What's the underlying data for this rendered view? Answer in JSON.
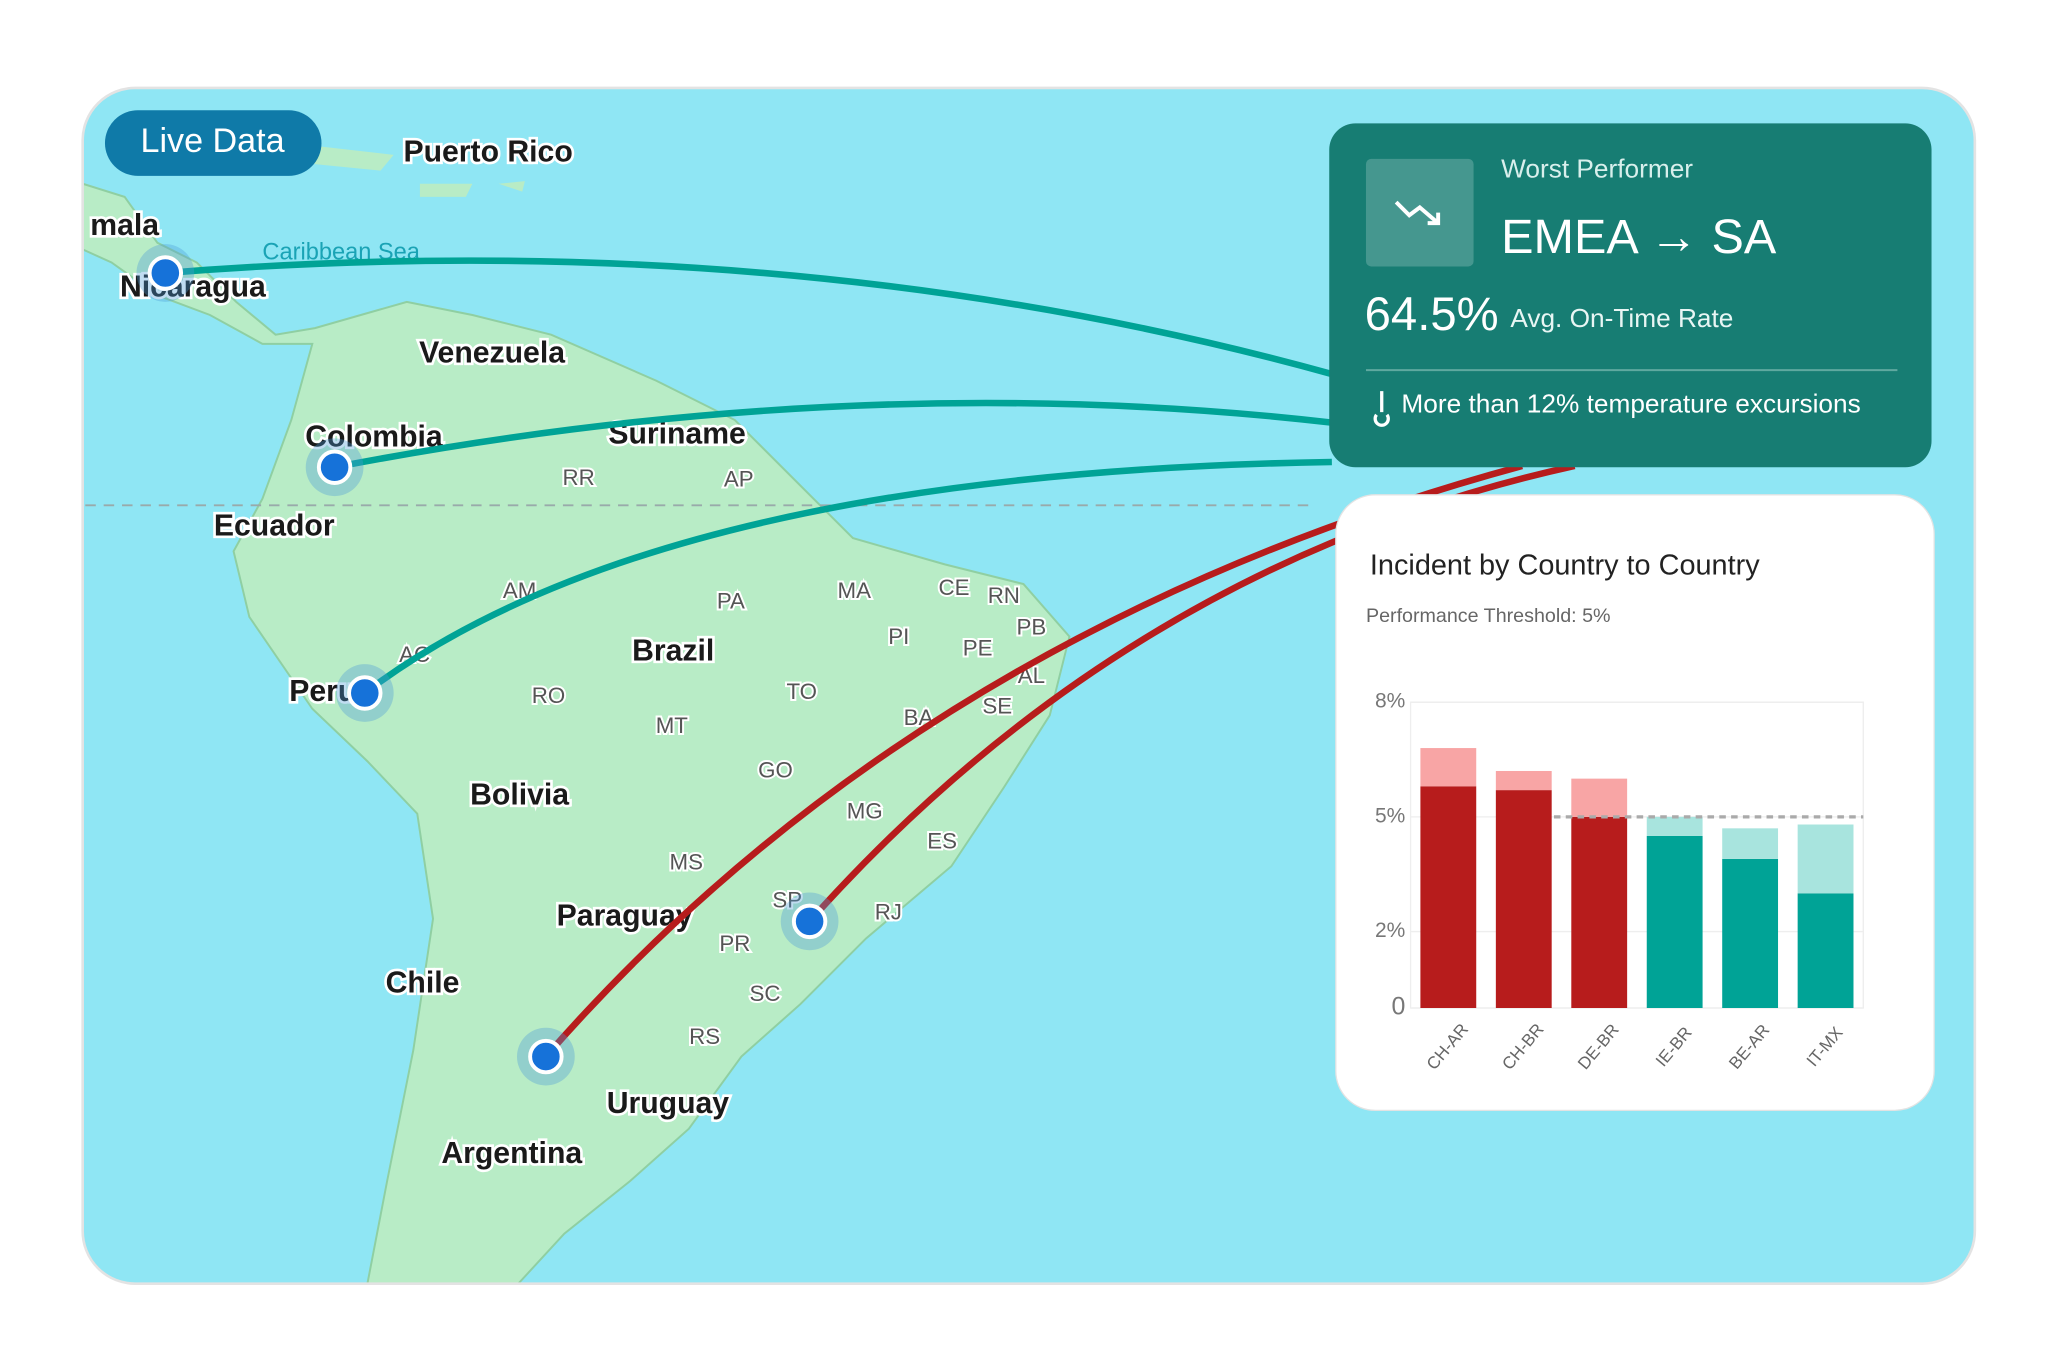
{
  "badge": "Live Data",
  "map": {
    "sea": "Caribbean Sea",
    "countries": [
      "Puerto Rico",
      "mala",
      "Nicaragua",
      "Venezuela",
      "Colombia",
      "Suriname",
      "Ecuador",
      "Brazil",
      "Peru",
      "Bolivia",
      "Paraguay",
      "Chile",
      "Uruguay",
      "Argentina"
    ],
    "states": [
      "RR",
      "AP",
      "AM",
      "PA",
      "MA",
      "CE",
      "RN",
      "PI",
      "PB",
      "PE",
      "AL",
      "AC",
      "RO",
      "TO",
      "SE",
      "BA",
      "MT",
      "GO",
      "MG",
      "ES",
      "MS",
      "SP",
      "RJ",
      "PR",
      "SC",
      "RS"
    ]
  },
  "card": {
    "label": "Worst Performer",
    "route": "EMEA → SA",
    "rate": "64.5%",
    "rate_label": "Avg. On-Time Rate",
    "note": "More than 12% temperature excursions"
  },
  "chart_data": {
    "type": "bar",
    "stacked": true,
    "title": "Incident by Country to Country",
    "subtitle": "Performance Threshold: 5%",
    "categories": [
      "CH-AR",
      "CH-BR",
      "DE-BR",
      "IE-BR",
      "BE-AR",
      "IT-MX"
    ],
    "series": [
      {
        "values": [
          5.8,
          5.7,
          5.0,
          4.5,
          3.9,
          3.0
        ],
        "colors": [
          "#b71c1c",
          "#b71c1c",
          "#b71c1c",
          "#00a396",
          "#00a396",
          "#00a396"
        ]
      },
      {
        "values": [
          1.0,
          0.5,
          1.0,
          0.5,
          0.8,
          1.8
        ],
        "colors": [
          "#f8a5a5",
          "#f8a5a5",
          "#f8a5a5",
          "#a8e4de",
          "#a8e4de",
          "#a8e4de"
        ]
      }
    ],
    "ylim": [
      0,
      8
    ],
    "yticks": [
      0,
      {
        "value": 2,
        "label": "2%"
      },
      {
        "value": 5,
        "label": "5%"
      },
      {
        "value": 8,
        "label": "8%"
      }
    ],
    "threshold": 5,
    "grid": true
  }
}
